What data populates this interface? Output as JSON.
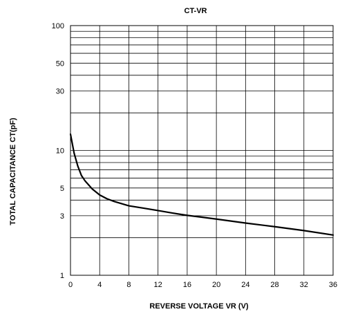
{
  "chart_data": {
    "type": "line",
    "title": "CT-VR",
    "xlabel": "REVERSE VOLTAGE VR (V)",
    "ylabel": "TOTAL CAPACITANCE CT(pF)",
    "x_scale": "linear",
    "y_scale": "log",
    "xlim": [
      0,
      36
    ],
    "ylim": [
      1,
      100
    ],
    "x_ticks": [
      0,
      4,
      8,
      12,
      16,
      20,
      24,
      28,
      32,
      36
    ],
    "y_tick_labels": [
      {
        "value": 1,
        "label": "1"
      },
      {
        "value": 3,
        "label": "3"
      },
      {
        "value": 5,
        "label": "5"
      },
      {
        "value": 10,
        "label": "10"
      },
      {
        "value": 30,
        "label": "30"
      },
      {
        "value": 50,
        "label": "50"
      },
      {
        "value": 100,
        "label": "100"
      }
    ],
    "y_gridlines": [
      1,
      2,
      3,
      4,
      5,
      6,
      7,
      8,
      9,
      10,
      20,
      30,
      40,
      50,
      60,
      70,
      80,
      90,
      100
    ],
    "grid": true,
    "series": [
      {
        "x": [
          0,
          0.5,
          1,
          1.5,
          2,
          3,
          4,
          5,
          6,
          7,
          8,
          10,
          12,
          14,
          16,
          18,
          20,
          24,
          28,
          32,
          36
        ],
        "values": [
          13.5,
          9.5,
          7.5,
          6.3,
          5.7,
          4.9,
          4.4,
          4.1,
          3.9,
          3.75,
          3.6,
          3.45,
          3.3,
          3.15,
          3.02,
          2.92,
          2.82,
          2.62,
          2.45,
          2.28,
          2.1
        ]
      }
    ],
    "colors": {
      "line": "#000000",
      "grid": "#000000",
      "background": "#ffffff"
    }
  }
}
